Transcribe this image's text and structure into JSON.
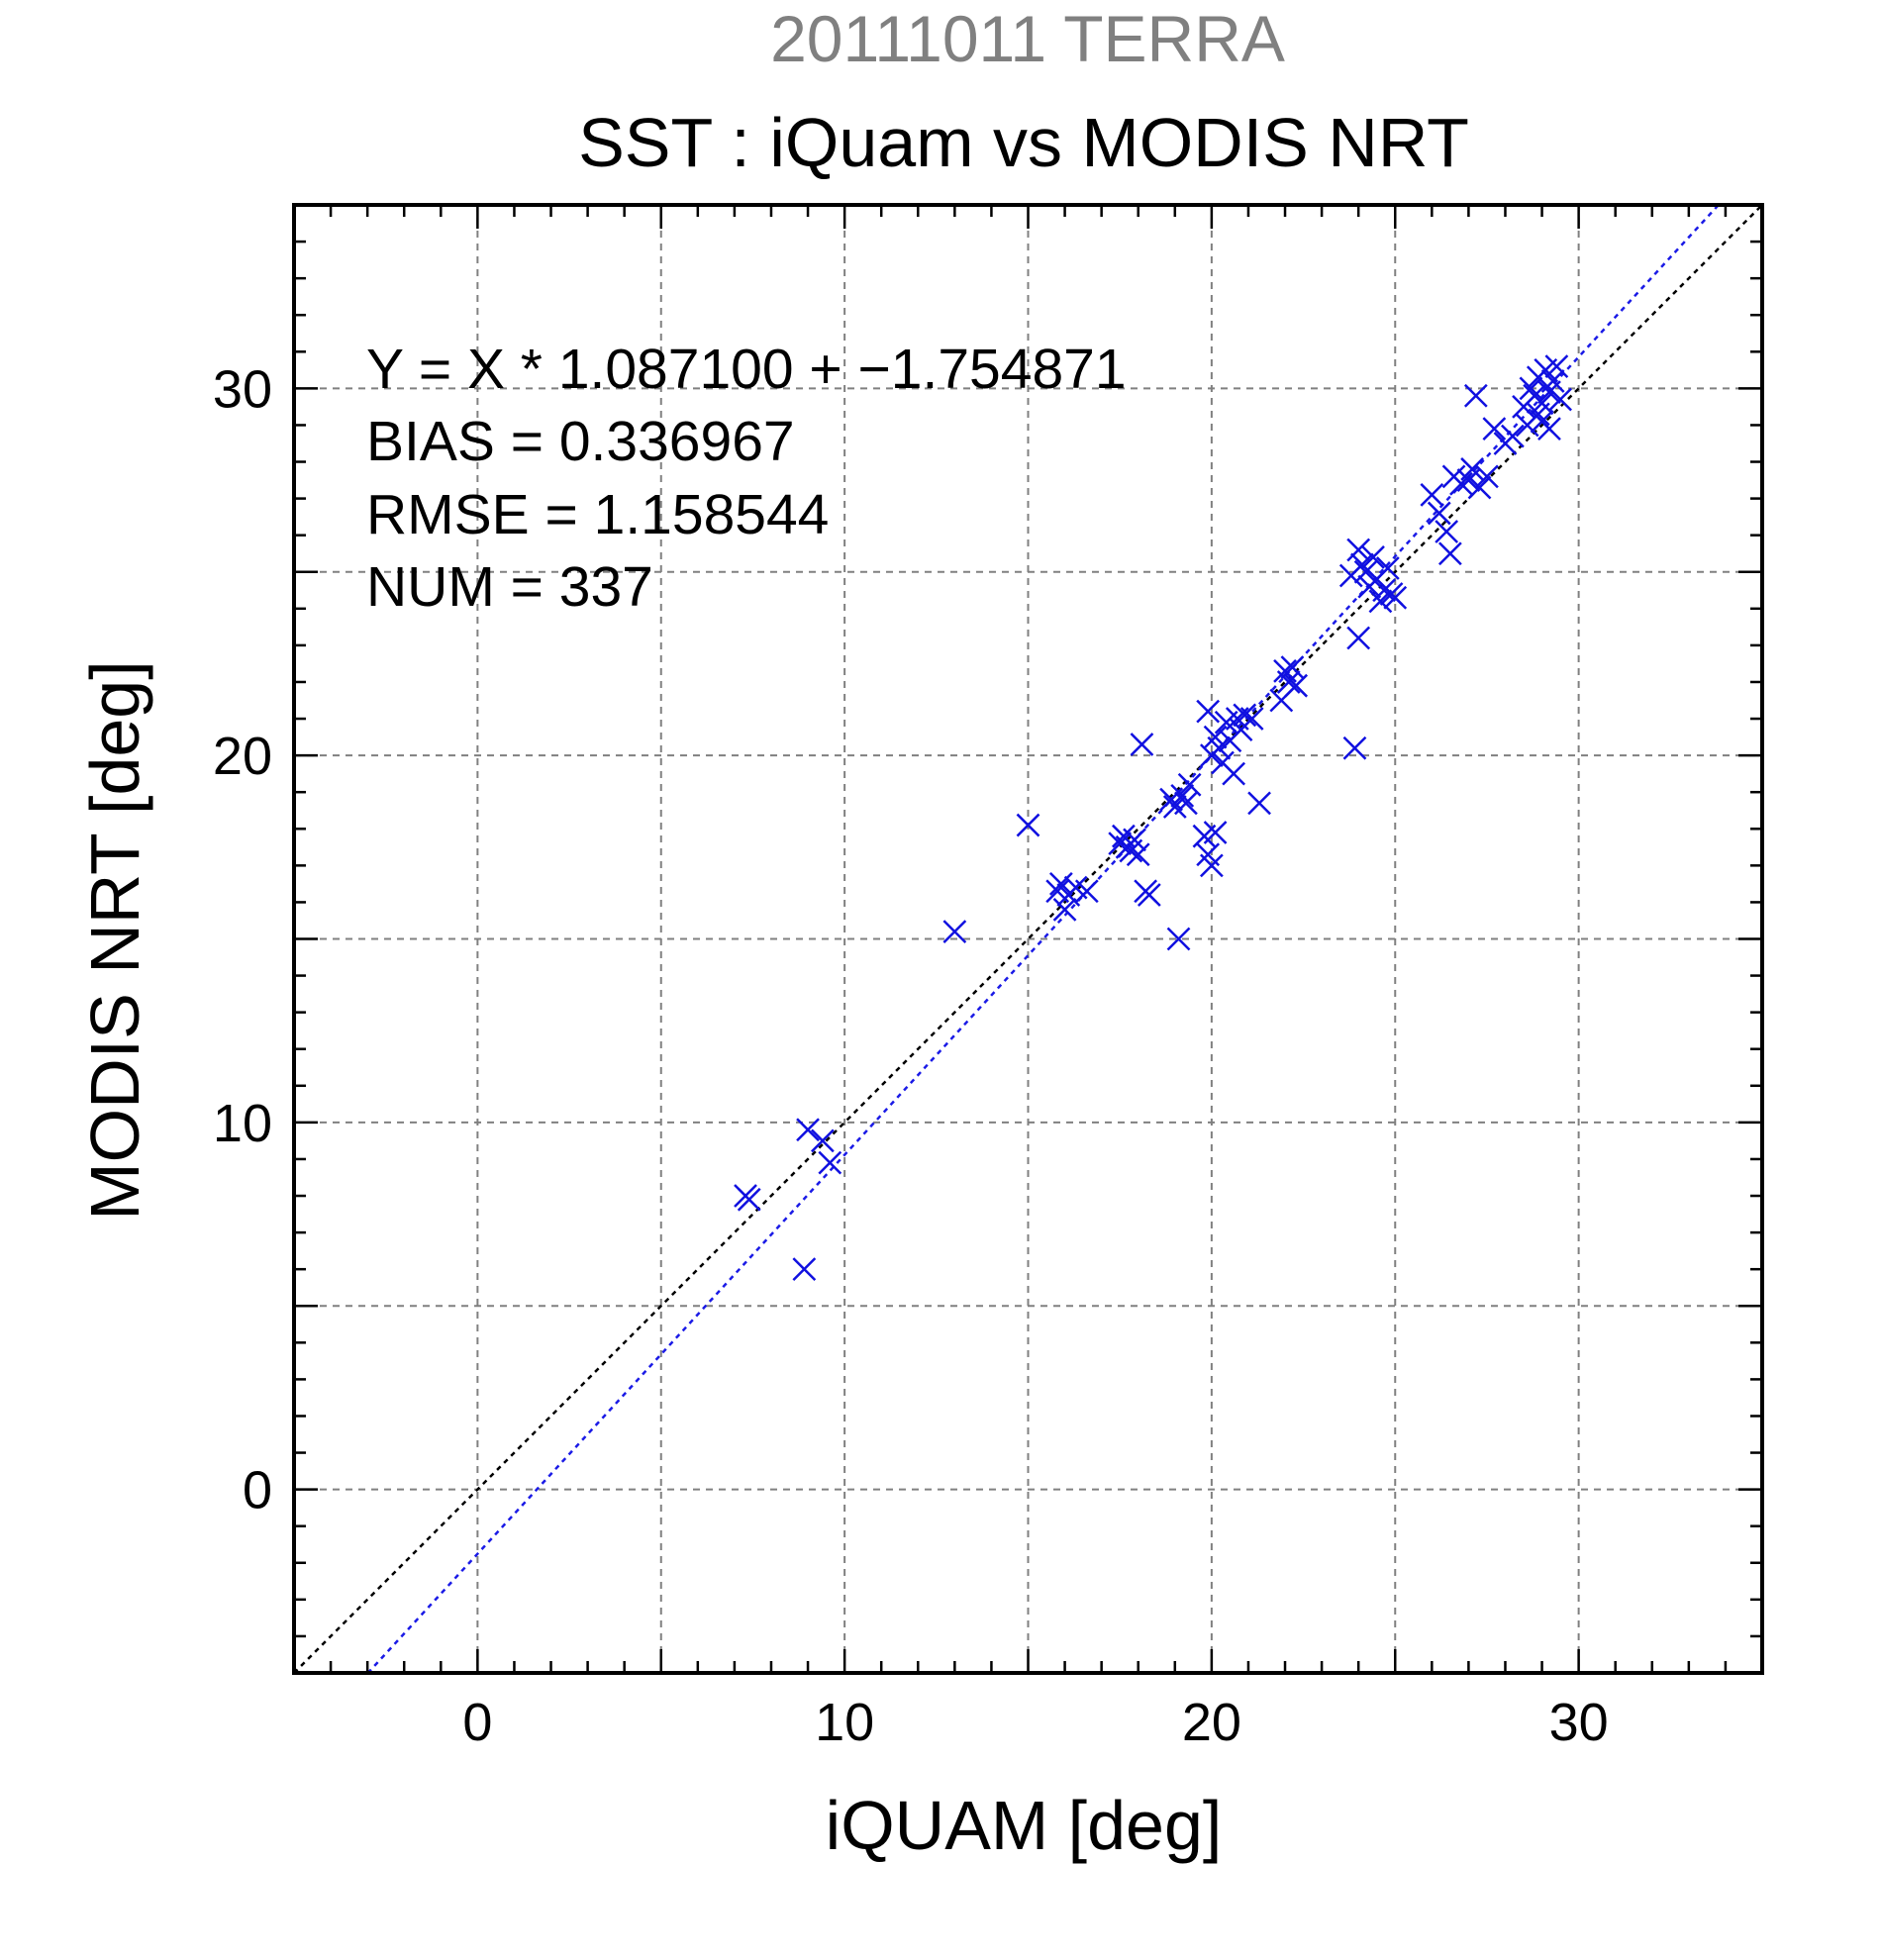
{
  "chart_data": {
    "type": "scatter",
    "title": "SST : iQuam vs MODIS NRT",
    "supertitle": "20111011 TERRA",
    "xlabel": "iQUAM [deg]",
    "ylabel": "MODIS NRT [deg]",
    "xlim": [
      -5,
      35
    ],
    "ylim": [
      -5,
      35
    ],
    "xticks": [
      0,
      10,
      20,
      30
    ],
    "yticks": [
      0,
      10,
      20,
      30
    ],
    "minor_tick_step": 1,
    "grid": true,
    "grid_step": 5,
    "annotations": [
      "Y = X * 1.087100 + −1.754871",
      "BIAS = 0.336967",
      "RMSE = 1.158544",
      "NUM = 337"
    ],
    "regression": {
      "slope": 1.0871,
      "intercept": -1.754871
    },
    "colors": {
      "points": "#1010e0",
      "fit_line": "#1a1ae6",
      "identity_line": "#000000",
      "grid": "#808080",
      "supertitle": "#808080",
      "text": "#000000"
    },
    "series": [
      {
        "marker": "x",
        "points": [
          [
            7.3,
            8.0
          ],
          [
            7.4,
            7.9
          ],
          [
            9.0,
            9.8
          ],
          [
            9.4,
            9.5
          ],
          [
            9.6,
            8.9
          ],
          [
            8.9,
            6.0
          ],
          [
            13.0,
            15.2
          ],
          [
            15.0,
            18.1
          ],
          [
            15.8,
            16.3
          ],
          [
            15.9,
            16.5
          ],
          [
            16.0,
            15.8
          ],
          [
            16.1,
            16.2
          ],
          [
            16.3,
            16.4
          ],
          [
            16.6,
            16.3
          ],
          [
            17.5,
            17.6
          ],
          [
            17.6,
            17.8
          ],
          [
            17.7,
            17.5
          ],
          [
            17.8,
            17.4
          ],
          [
            17.9,
            17.7
          ],
          [
            18.0,
            17.3
          ],
          [
            18.1,
            20.3
          ],
          [
            18.2,
            16.3
          ],
          [
            18.3,
            16.2
          ],
          [
            18.9,
            18.8
          ],
          [
            19.0,
            18.6
          ],
          [
            19.1,
            15.0
          ],
          [
            19.2,
            18.9
          ],
          [
            19.3,
            18.7
          ],
          [
            19.4,
            19.2
          ],
          [
            19.8,
            17.8
          ],
          [
            19.9,
            17.3
          ],
          [
            20.0,
            17.0
          ],
          [
            20.1,
            17.9
          ],
          [
            19.9,
            21.2
          ],
          [
            20.0,
            20.0
          ],
          [
            20.1,
            20.5
          ],
          [
            20.2,
            20.2
          ],
          [
            20.3,
            19.8
          ],
          [
            20.4,
            20.9
          ],
          [
            20.5,
            20.4
          ],
          [
            20.6,
            19.5
          ],
          [
            20.7,
            21.0
          ],
          [
            20.8,
            20.7
          ],
          [
            20.9,
            21.1
          ],
          [
            21.1,
            21.0
          ],
          [
            21.3,
            18.7
          ],
          [
            21.9,
            21.5
          ],
          [
            22.0,
            22.3
          ],
          [
            22.1,
            22.0
          ],
          [
            22.2,
            22.4
          ],
          [
            22.3,
            21.9
          ],
          [
            23.9,
            20.2
          ],
          [
            24.0,
            23.2
          ],
          [
            23.8,
            24.9
          ],
          [
            24.0,
            25.6
          ],
          [
            24.1,
            25.2
          ],
          [
            24.2,
            25.0
          ],
          [
            24.3,
            24.6
          ],
          [
            24.4,
            25.4
          ],
          [
            24.5,
            24.8
          ],
          [
            24.6,
            24.2
          ],
          [
            24.7,
            24.5
          ],
          [
            24.8,
            25.1
          ],
          [
            24.9,
            24.4
          ],
          [
            25.0,
            24.3
          ],
          [
            26.0,
            27.1
          ],
          [
            26.2,
            26.6
          ],
          [
            26.4,
            26.1
          ],
          [
            26.5,
            25.5
          ],
          [
            26.6,
            27.6
          ],
          [
            26.8,
            27.4
          ],
          [
            27.0,
            27.5
          ],
          [
            27.1,
            27.8
          ],
          [
            27.2,
            29.8
          ],
          [
            27.3,
            27.3
          ],
          [
            27.5,
            27.6
          ],
          [
            27.7,
            28.9
          ],
          [
            28.0,
            28.5
          ],
          [
            28.2,
            28.7
          ],
          [
            28.5,
            29.5
          ],
          [
            28.6,
            29.0
          ],
          [
            28.7,
            30.0
          ],
          [
            28.8,
            29.8
          ],
          [
            28.9,
            30.3
          ],
          [
            29.0,
            29.6
          ],
          [
            29.1,
            30.5
          ],
          [
            29.2,
            29.9
          ],
          [
            29.3,
            30.2
          ],
          [
            29.4,
            30.6
          ],
          [
            29.5,
            29.7
          ],
          [
            29.0,
            29.1
          ],
          [
            29.2,
            28.9
          ],
          [
            28.9,
            29.3
          ]
        ]
      }
    ]
  }
}
